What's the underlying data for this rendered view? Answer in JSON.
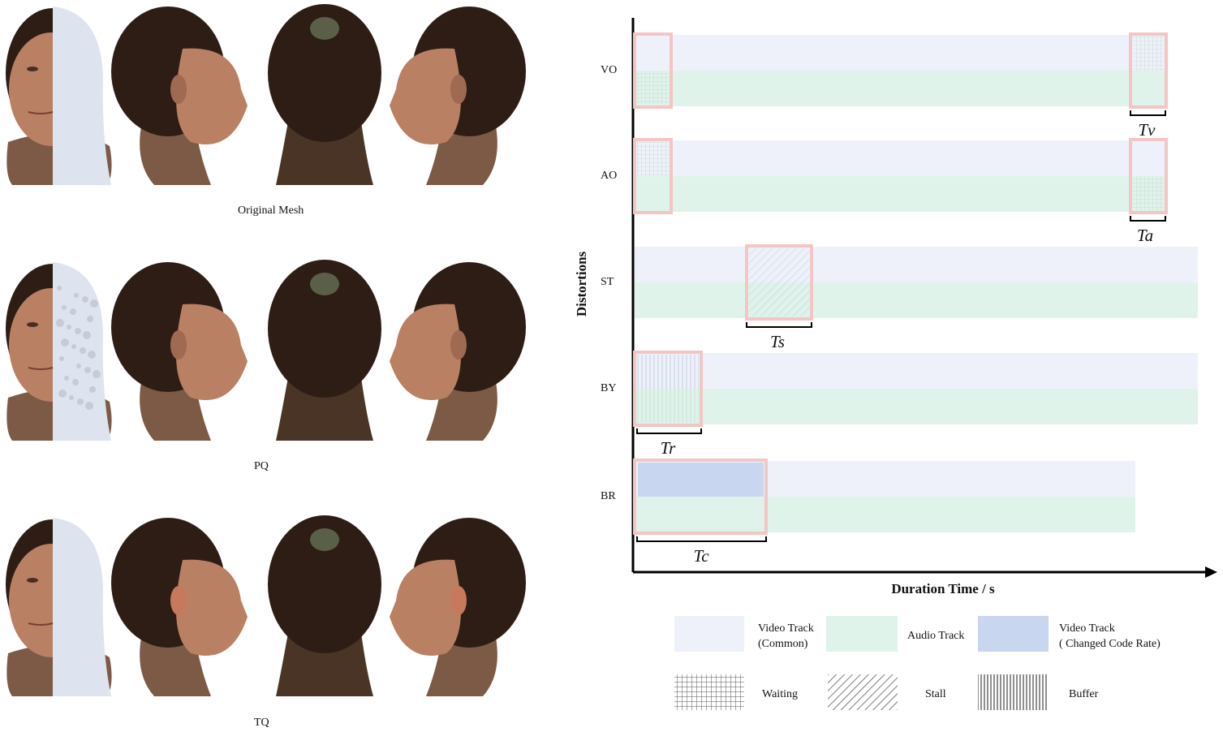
{
  "rows": {
    "captions": [
      "Original Mesh",
      "PQ",
      "TQ"
    ],
    "views": [
      "front-split",
      "right-profile",
      "back",
      "left-profile"
    ]
  },
  "chart": {
    "y_axis_label": "Distortions",
    "x_axis_label": "Duration Time / s",
    "categories": [
      "VO",
      "AO",
      "ST",
      "BY",
      "BR"
    ],
    "interval_labels": [
      "Tv",
      "Ta",
      "Ts",
      "Tr",
      "Tc"
    ]
  },
  "legend": {
    "video_common": "Video Track\n(Common)",
    "audio": "Audio Track",
    "video_changed": "Video Track\n( Changed Code Rate)",
    "waiting": "Waiting",
    "stall": "Stall",
    "buffer": "Buffer"
  },
  "colors": {
    "video_track": "#eef1fa",
    "audio_track": "#dff3ea",
    "video_changed": "#c9d6ef",
    "highlight_box": "#f3c6c6",
    "hair": "#2e1d15",
    "skin": "#b98063",
    "neck": "#7c5a45",
    "mesh": "#dde4ef"
  }
}
